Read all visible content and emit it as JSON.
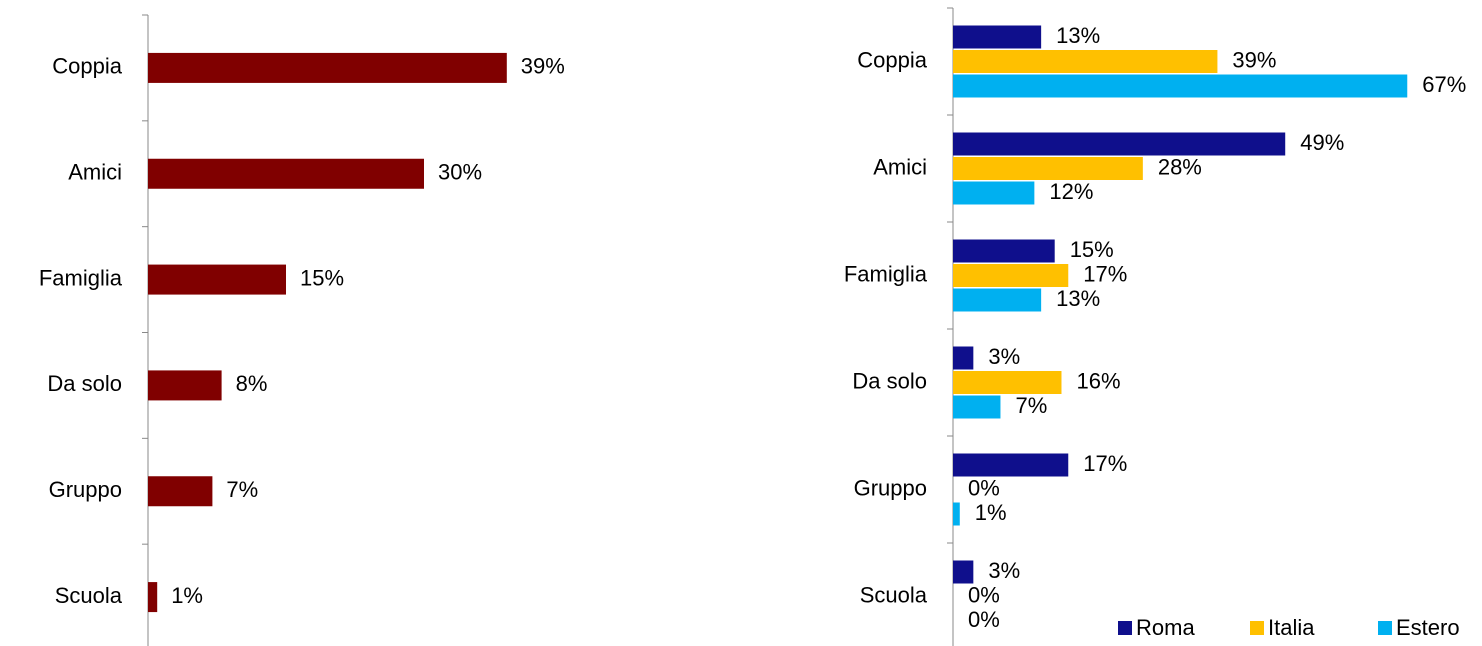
{
  "chart_data": [
    {
      "type": "hbar",
      "categories": [
        "Coppia",
        "Amici",
        "Famiglia",
        "Da solo",
        "Gruppo",
        "Scuola"
      ],
      "values": [
        39,
        30,
        15,
        8,
        7,
        1
      ],
      "value_labels": [
        "39%",
        "30%",
        "15%",
        "8%",
        "7%",
        "1%"
      ],
      "color": "#800000"
    },
    {
      "type": "grouped-hbar",
      "categories": [
        "Coppia",
        "Amici",
        "Famiglia",
        "Da solo",
        "Gruppo",
        "Scuola"
      ],
      "legend": "bottom-right",
      "series": [
        {
          "name": "Roma",
          "color": "#0f0f8c",
          "values": [
            13,
            49,
            15,
            3,
            17,
            3
          ],
          "value_labels": [
            "13%",
            "49%",
            "15%",
            "3%",
            "17%",
            "3%"
          ]
        },
        {
          "name": "Italia",
          "color": "#ffc000",
          "values": [
            39,
            28,
            17,
            16,
            0,
            0
          ],
          "value_labels": [
            "39%",
            "28%",
            "17%",
            "16%",
            "0%",
            "0%"
          ]
        },
        {
          "name": "Estero",
          "color": "#00b0f0",
          "values": [
            67,
            12,
            13,
            7,
            1,
            0
          ],
          "value_labels": [
            "67%",
            "12%",
            "13%",
            "7%",
            "1%",
            "0%"
          ]
        }
      ]
    }
  ]
}
